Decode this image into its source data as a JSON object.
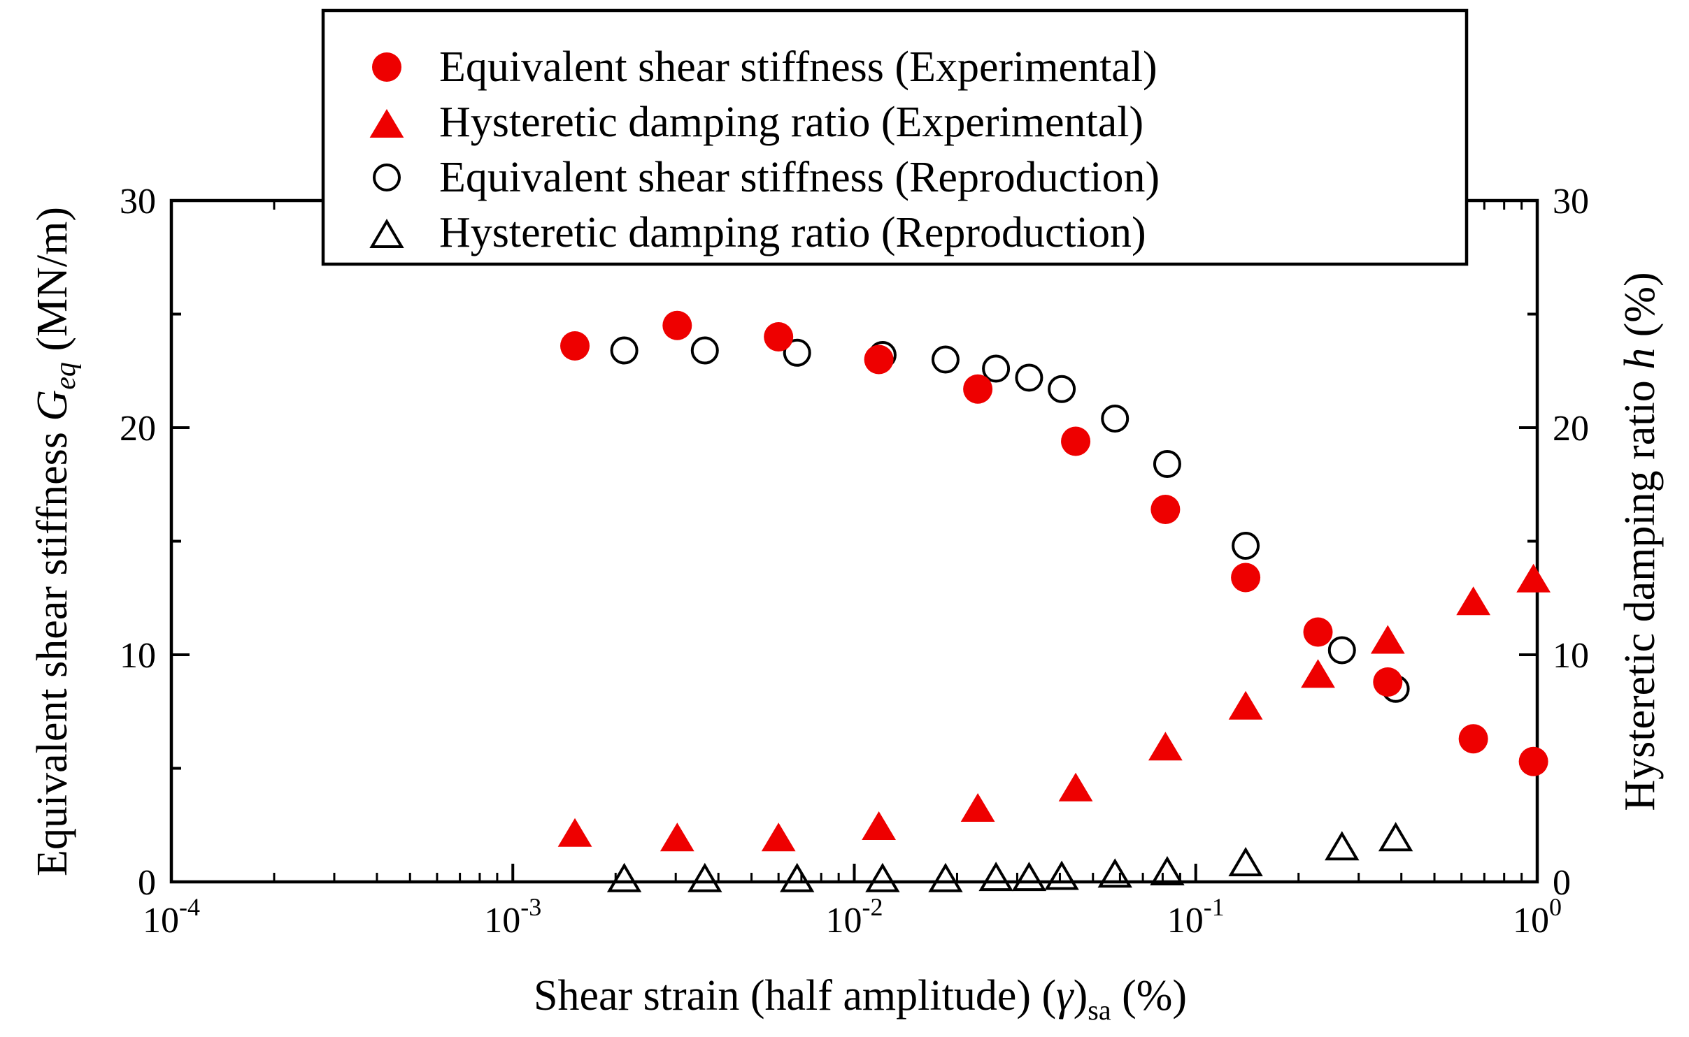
{
  "chart_data": {
    "type": "scatter",
    "x_scale": "log",
    "xlim": [
      0.0001,
      1
    ],
    "ylim_left": [
      0,
      30
    ],
    "ylim_right": [
      0,
      30
    ],
    "x_ticks": [
      {
        "value": 0.0001,
        "base": "10",
        "exp": "-4"
      },
      {
        "value": 0.001,
        "base": "10",
        "exp": "-3"
      },
      {
        "value": 0.01,
        "base": "10",
        "exp": "-2"
      },
      {
        "value": 0.1,
        "base": "10",
        "exp": "-1"
      },
      {
        "value": 1,
        "base": "10",
        "exp": "0"
      }
    ],
    "y_ticks_left": [
      "0",
      "10",
      "20",
      "30"
    ],
    "y_ticks_right": [
      "0",
      "10",
      "20",
      "30"
    ],
    "xlabel": {
      "main": "Shear strain (half amplitude)  (",
      "gamma": "γ",
      "close": ")",
      "sub": "sa",
      "unit": " (%)"
    },
    "ylabel_left": {
      "main": "Equivalent shear stiffness ",
      "symbol": "G",
      "sub": "eq",
      "unit": " (MN/m)"
    },
    "ylabel_right": {
      "main": "Hysteretic damping ratio ",
      "symbol": "h",
      "unit": " (%)"
    },
    "legend_position": "top-center",
    "series": [
      {
        "name": "Equivalent shear stiffness (Experimental)",
        "marker": "filled-circle",
        "color": "#ee0000",
        "axis": "left",
        "points": [
          [
            0.00152,
            23.6
          ],
          [
            0.00303,
            24.5
          ],
          [
            0.006,
            24.0
          ],
          [
            0.0118,
            23.0
          ],
          [
            0.023,
            21.7
          ],
          [
            0.0445,
            19.4
          ],
          [
            0.0815,
            16.4
          ],
          [
            0.14,
            13.4
          ],
          [
            0.228,
            11.0
          ],
          [
            0.365,
            8.8
          ],
          [
            0.65,
            6.3
          ],
          [
            0.975,
            5.3
          ]
        ]
      },
      {
        "name": "Hysteretic damping ratio (Experimental)",
        "marker": "filled-triangle",
        "color": "#ee0000",
        "axis": "right",
        "points": [
          [
            0.00152,
            2.1
          ],
          [
            0.00303,
            1.9
          ],
          [
            0.006,
            1.9
          ],
          [
            0.0118,
            2.4
          ],
          [
            0.023,
            3.2
          ],
          [
            0.0445,
            4.1
          ],
          [
            0.0815,
            5.9
          ],
          [
            0.14,
            7.7
          ],
          [
            0.228,
            9.1
          ],
          [
            0.365,
            10.6
          ],
          [
            0.65,
            12.3
          ],
          [
            0.975,
            13.3
          ]
        ]
      },
      {
        "name": "Equivalent shear stiffness (Reproduction)",
        "marker": "open-circle",
        "color": "#000000",
        "axis": "left",
        "points": [
          [
            0.00212,
            23.4
          ],
          [
            0.00365,
            23.4
          ],
          [
            0.0068,
            23.3
          ],
          [
            0.0121,
            23.2
          ],
          [
            0.0185,
            23.0
          ],
          [
            0.026,
            22.6
          ],
          [
            0.0325,
            22.2
          ],
          [
            0.0405,
            21.7
          ],
          [
            0.058,
            20.4
          ],
          [
            0.0825,
            18.4
          ],
          [
            0.14,
            14.8
          ],
          [
            0.268,
            10.2
          ],
          [
            0.385,
            8.5
          ]
        ]
      },
      {
        "name": "Hysteretic damping ratio (Reproduction)",
        "marker": "open-triangle",
        "color": "#000000",
        "axis": "right",
        "points": [
          [
            0.00212,
            0.1
          ],
          [
            0.00365,
            0.1
          ],
          [
            0.0068,
            0.1
          ],
          [
            0.0121,
            0.1
          ],
          [
            0.0185,
            0.1
          ],
          [
            0.026,
            0.15
          ],
          [
            0.0325,
            0.15
          ],
          [
            0.0405,
            0.2
          ],
          [
            0.058,
            0.3
          ],
          [
            0.0825,
            0.4
          ],
          [
            0.14,
            0.8
          ],
          [
            0.268,
            1.5
          ],
          [
            0.385,
            1.9
          ]
        ]
      }
    ]
  }
}
